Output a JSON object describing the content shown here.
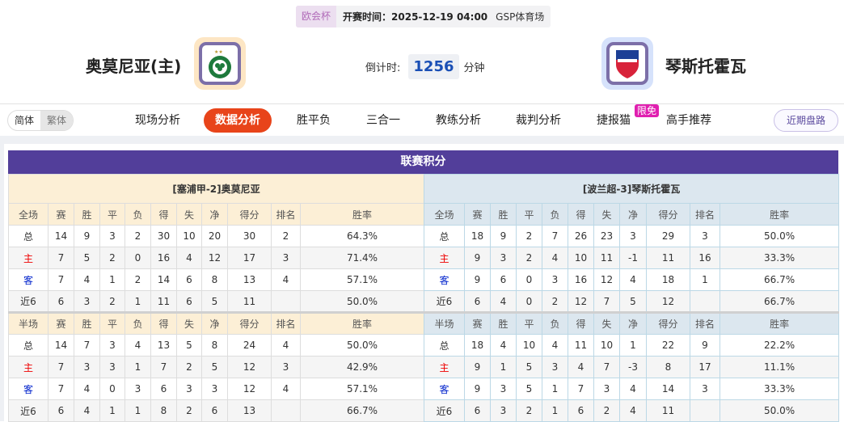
{
  "match": {
    "competition": "欧会杯",
    "kickoff_label": "开赛时间：2025-12-19 04:00",
    "venue": "GSP体育场",
    "home": "奥莫尼亚(主)",
    "away": "琴斯托霍瓦",
    "countdown_label": "倒计时:",
    "countdown_value": "1256",
    "countdown_unit": "分钟"
  },
  "nav": {
    "lang": [
      "简体",
      "繁体"
    ],
    "tabs": [
      "现场分析",
      "数据分析",
      "胜平负",
      "三合一",
      "教练分析",
      "裁判分析",
      "捷报猫",
      "高手推荐"
    ],
    "active": "数据分析",
    "badge": "限免",
    "recent": "近期盘路"
  },
  "colors": {
    "accent": "#e8441a",
    "header": "#523e9a"
  },
  "section_title": "联赛积分",
  "columns_full": [
    "全场",
    "赛",
    "胜",
    "平",
    "负",
    "得",
    "失",
    "净",
    "得分",
    "排名",
    "胜率"
  ],
  "columns_half": [
    "半场",
    "赛",
    "胜",
    "平",
    "负",
    "得",
    "失",
    "净",
    "得分",
    "排名",
    "胜率"
  ],
  "home_table": {
    "title": "[塞浦甲-2]奥莫尼亚",
    "full": [
      [
        "总",
        "14",
        "9",
        "3",
        "2",
        "30",
        "10",
        "20",
        "30",
        "2",
        "64.3%"
      ],
      [
        "主",
        "7",
        "5",
        "2",
        "0",
        "16",
        "4",
        "12",
        "17",
        "3",
        "71.4%"
      ],
      [
        "客",
        "7",
        "4",
        "1",
        "2",
        "14",
        "6",
        "8",
        "13",
        "4",
        "57.1%"
      ],
      [
        "近6",
        "6",
        "3",
        "2",
        "1",
        "11",
        "6",
        "5",
        "11",
        "",
        "50.0%"
      ]
    ],
    "half": [
      [
        "总",
        "14",
        "7",
        "3",
        "4",
        "13",
        "5",
        "8",
        "24",
        "4",
        "50.0%"
      ],
      [
        "主",
        "7",
        "3",
        "3",
        "1",
        "7",
        "2",
        "5",
        "12",
        "3",
        "42.9%"
      ],
      [
        "客",
        "7",
        "4",
        "0",
        "3",
        "6",
        "3",
        "3",
        "12",
        "4",
        "57.1%"
      ],
      [
        "近6",
        "6",
        "4",
        "1",
        "1",
        "8",
        "2",
        "6",
        "13",
        "",
        "66.7%"
      ]
    ]
  },
  "away_table": {
    "title": "[波兰超-3]琴斯托霍瓦",
    "full": [
      [
        "总",
        "18",
        "9",
        "2",
        "7",
        "26",
        "23",
        "3",
        "29",
        "3",
        "50.0%"
      ],
      [
        "主",
        "9",
        "3",
        "2",
        "4",
        "10",
        "11",
        "-1",
        "11",
        "16",
        "33.3%"
      ],
      [
        "客",
        "9",
        "6",
        "0",
        "3",
        "16",
        "12",
        "4",
        "18",
        "1",
        "66.7%"
      ],
      [
        "近6",
        "6",
        "4",
        "0",
        "2",
        "12",
        "7",
        "5",
        "12",
        "",
        "66.7%"
      ]
    ],
    "half": [
      [
        "总",
        "18",
        "4",
        "10",
        "4",
        "11",
        "10",
        "1",
        "22",
        "9",
        "22.2%"
      ],
      [
        "主",
        "9",
        "1",
        "5",
        "3",
        "4",
        "7",
        "-3",
        "8",
        "17",
        "11.1%"
      ],
      [
        "客",
        "9",
        "3",
        "5",
        "1",
        "7",
        "3",
        "4",
        "14",
        "3",
        "33.3%"
      ],
      [
        "近6",
        "6",
        "3",
        "2",
        "1",
        "6",
        "2",
        "4",
        "11",
        "",
        "50.0%"
      ]
    ]
  }
}
